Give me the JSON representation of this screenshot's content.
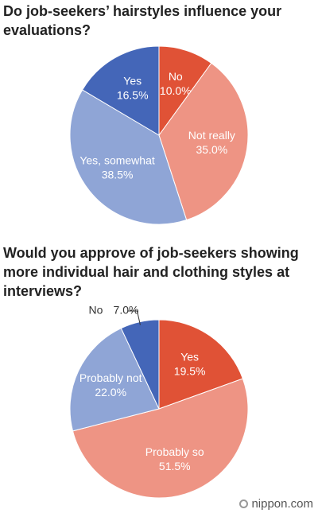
{
  "chart_data": [
    {
      "type": "pie",
      "title": "Do job-seekers’ hairstyles influence your evaluations?",
      "categories": [
        "No",
        "Not really",
        "Yes, somewhat",
        "Yes"
      ],
      "values": [
        10.0,
        35.0,
        38.5,
        16.5
      ],
      "value_labels": [
        "10.0%",
        "35.0%",
        "38.5%",
        "16.5%"
      ],
      "colors": [
        "#e05236",
        "#ee9484",
        "#8fa5d6",
        "#4466b8"
      ]
    },
    {
      "type": "pie",
      "title": "Would you approve of job-seekers showing more individual hair and clothing styles at interviews?",
      "categories": [
        "Yes",
        "Probably so",
        "Probably not",
        "No"
      ],
      "values": [
        19.5,
        51.5,
        22.0,
        7.0
      ],
      "value_labels": [
        "19.5%",
        "51.5%",
        "22.0%",
        "7.0%"
      ],
      "colors": [
        "#e05236",
        "#ee9484",
        "#8fa5d6",
        "#4466b8"
      ]
    }
  ],
  "source": "nippon.com"
}
